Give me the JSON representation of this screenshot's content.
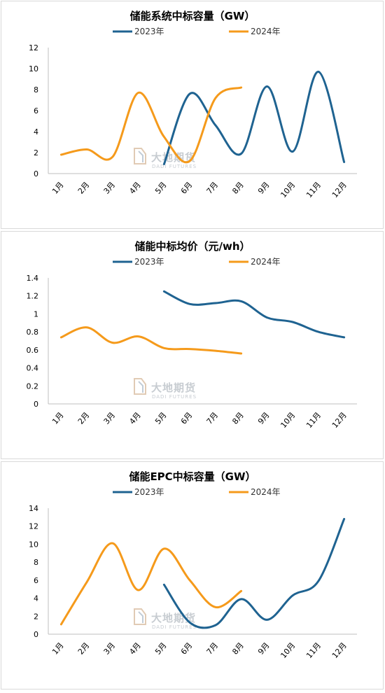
{
  "watermark": {
    "main": "大地期货",
    "sub": "DADI FUTURES"
  },
  "chart_data": [
    {
      "type": "line",
      "title": "储能系统中标容量（GW）",
      "categories": [
        "1月",
        "2月",
        "3月",
        "4月",
        "5月",
        "6月",
        "7月",
        "8月",
        "9月",
        "10月",
        "11月",
        "12月"
      ],
      "ylim": [
        0,
        12
      ],
      "yticks": [
        "0",
        "2",
        "4",
        "6",
        "8",
        "10",
        "12"
      ],
      "legend_position": "top",
      "grid": false,
      "series": [
        {
          "name": "2023年",
          "color": "#1f6391",
          "values": [
            null,
            null,
            null,
            null,
            0.9,
            7.6,
            4.6,
            1.9,
            8.3,
            2.1,
            9.7,
            1.1
          ]
        },
        {
          "name": "2024年",
          "color": "#f59a1b",
          "values": [
            1.8,
            2.3,
            1.6,
            7.7,
            3.5,
            1.2,
            7.2,
            8.2,
            null,
            null,
            null,
            null
          ]
        }
      ]
    },
    {
      "type": "line",
      "title": "储能中标均价（元/wh）",
      "categories": [
        "1月",
        "2月",
        "3月",
        "4月",
        "5月",
        "6月",
        "7月",
        "8月",
        "9月",
        "10月",
        "11月",
        "12月"
      ],
      "ylim": [
        0,
        1.4
      ],
      "yticks": [
        "0",
        "0.2",
        "0.4",
        "0.6",
        "0.8",
        "1",
        "1.2",
        "1.4"
      ],
      "legend_position": "top",
      "grid": false,
      "series": [
        {
          "name": "2023年",
          "color": "#1f6391",
          "values": [
            null,
            null,
            null,
            null,
            1.25,
            1.11,
            1.12,
            1.14,
            0.96,
            0.91,
            0.8,
            0.74
          ]
        },
        {
          "name": "2024年",
          "color": "#f59a1b",
          "values": [
            0.74,
            0.85,
            0.68,
            0.75,
            0.62,
            0.61,
            0.59,
            0.56,
            null,
            null,
            null,
            null
          ]
        }
      ]
    },
    {
      "type": "line",
      "title": "储能EPC中标容量（GW）",
      "categories": [
        "1月",
        "2月",
        "3月",
        "4月",
        "5月",
        "6月",
        "7月",
        "8月",
        "9月",
        "10月",
        "11月",
        "12月"
      ],
      "ylim": [
        0,
        14
      ],
      "yticks": [
        "0",
        "2",
        "4",
        "6",
        "8",
        "10",
        "12",
        "14"
      ],
      "legend_position": "top",
      "grid": false,
      "series": [
        {
          "name": "2023年",
          "color": "#1f6391",
          "values": [
            null,
            null,
            null,
            null,
            5.5,
            1.3,
            1.0,
            3.9,
            1.6,
            4.3,
            5.9,
            12.8
          ]
        },
        {
          "name": "2024年",
          "color": "#f59a1b",
          "values": [
            1.1,
            5.8,
            10.1,
            4.9,
            9.5,
            6.0,
            3.0,
            4.8,
            null,
            null,
            null,
            null
          ]
        }
      ]
    }
  ]
}
